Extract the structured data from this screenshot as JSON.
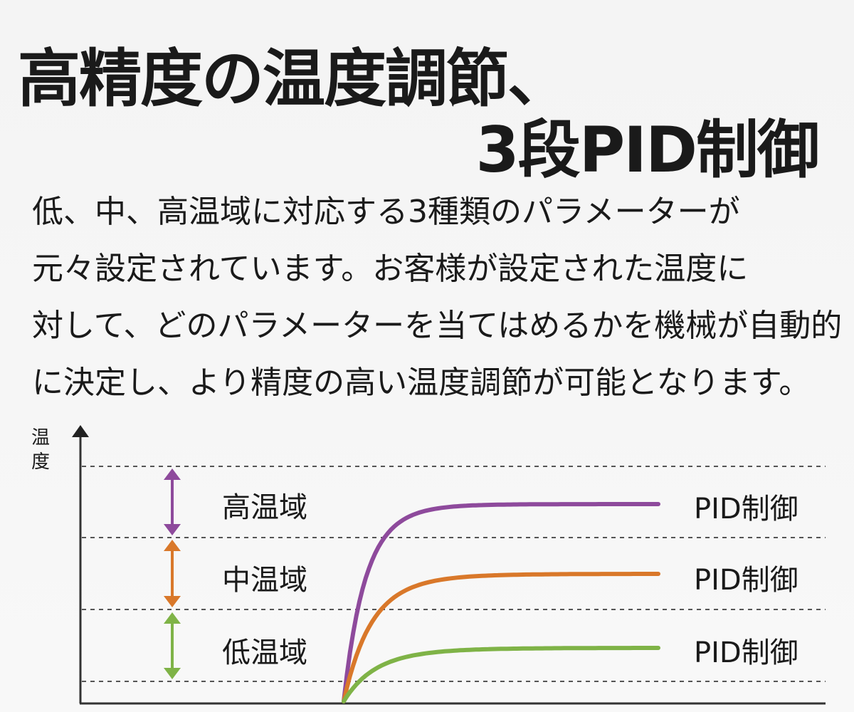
{
  "title": {
    "line1": "高精度の温度調節、",
    "line2": "3段PID制御"
  },
  "description": [
    "低、中、高温域に対応する3種類のパラメーターが",
    "元々設定されています。お客様が設定された温度に",
    "対して、どのパラメーターを当てはめるかを機械が自動的",
    "に決定し、より精度の高い温度調節が可能となります。"
  ],
  "diagram": {
    "y_axis_label": "温度",
    "zones": [
      {
        "label": "高温域",
        "curve_label": "PID制御",
        "color": "#8e4a9c"
      },
      {
        "label": "中温域",
        "curve_label": "PID制御",
        "color": "#d9782a"
      },
      {
        "label": "低温域",
        "curve_label": "PID制御",
        "color": "#7fb347"
      }
    ]
  }
}
